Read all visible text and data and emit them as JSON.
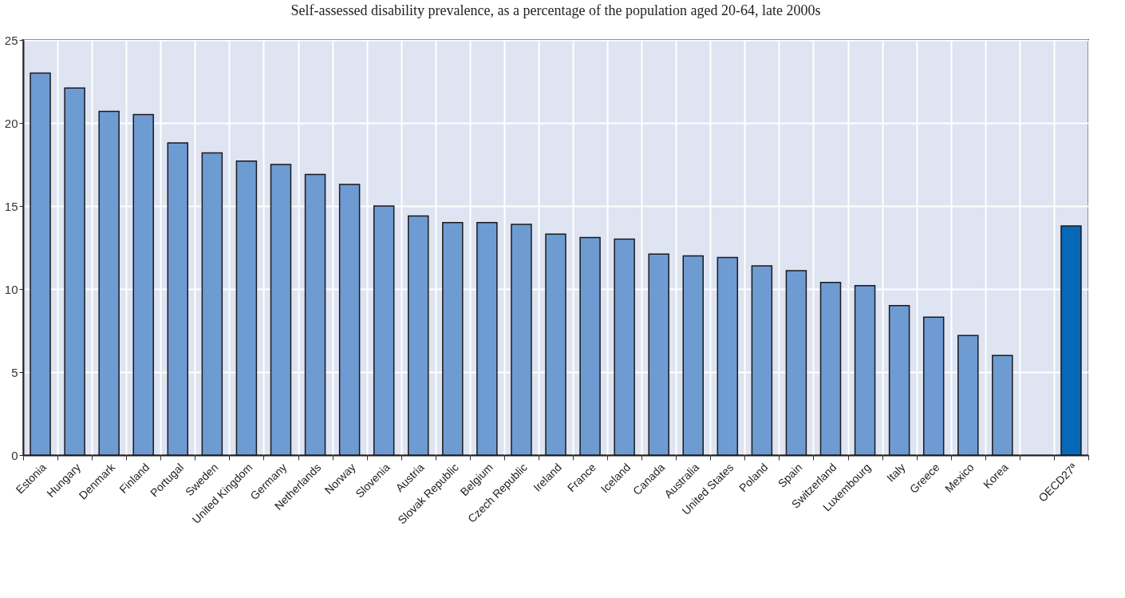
{
  "chart_data": {
    "type": "bar",
    "title": "Self-assessed disability prevalence, as a percentage of the population aged 20-64, late 2000s",
    "categories": [
      "Estonia",
      "Hungary",
      "Denmark",
      "Finland",
      "Portugal",
      "Sweden",
      "United Kingdom",
      "Germany",
      "Netherlands",
      "Norway",
      "Slovenia",
      "Austria",
      "Slovak Republic",
      "Belgium",
      "Czech Republic",
      "Ireland",
      "France",
      "Iceland",
      "Canada",
      "Australia",
      "United States",
      "Poland",
      "Spain",
      "Switzerland",
      "Luxembourg",
      "Italy",
      "Greece",
      "Mexico",
      "Korea",
      null,
      "OECD27ª"
    ],
    "values": [
      23.0,
      22.1,
      20.7,
      20.5,
      18.8,
      18.2,
      17.7,
      17.5,
      16.9,
      16.3,
      15.0,
      14.4,
      14.0,
      14.0,
      13.9,
      13.3,
      13.1,
      13.0,
      12.1,
      12.0,
      11.9,
      11.4,
      11.1,
      10.4,
      10.2,
      9.0,
      8.3,
      7.2,
      6.0,
      null,
      13.8
    ],
    "colors": [
      "#6f9bd3",
      "#6f9bd3",
      "#6f9bd3",
      "#6f9bd3",
      "#6f9bd3",
      "#6f9bd3",
      "#6f9bd3",
      "#6f9bd3",
      "#6f9bd3",
      "#6f9bd3",
      "#6f9bd3",
      "#6f9bd3",
      "#6f9bd3",
      "#6f9bd3",
      "#6f9bd3",
      "#6f9bd3",
      "#6f9bd3",
      "#6f9bd3",
      "#6f9bd3",
      "#6f9bd3",
      "#6f9bd3",
      "#6f9bd3",
      "#6f9bd3",
      "#6f9bd3",
      "#6f9bd3",
      "#6f9bd3",
      "#6f9bd3",
      "#6f9bd3",
      "#6f9bd3",
      "#6f9bd3",
      "#0868b8"
    ],
    "ylim": [
      0,
      25
    ],
    "yticks": [
      0,
      5,
      10,
      15,
      20,
      25
    ],
    "grid": true
  }
}
